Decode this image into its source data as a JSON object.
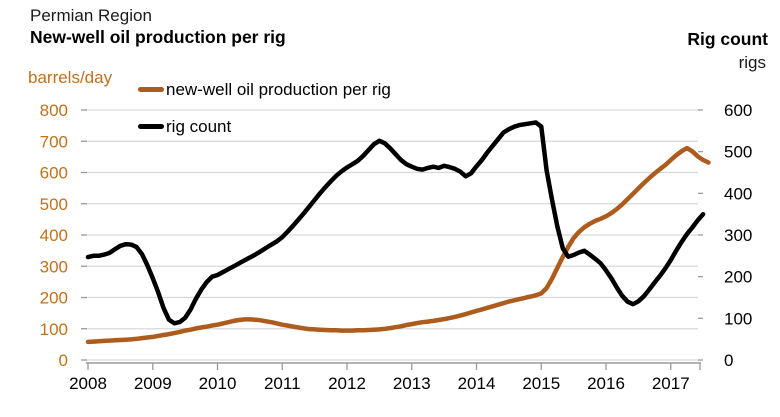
{
  "header": {
    "region": "Permian Region",
    "title": "New-well oil production per rig",
    "right_title": "Rig count",
    "right_unit": "rigs",
    "left_unit": "barrels/day"
  },
  "colors": {
    "production_line": "#ad5c1e",
    "rig_line": "#000000",
    "left_axis_text": "#c1711c",
    "right_axis_text": "#000000",
    "gridline": "#d9d9d9",
    "axis_line": "#9a9a9a"
  },
  "chart_data": {
    "type": "line",
    "title": "Permian Region",
    "subtitle": "New-well oil production per rig",
    "grid": true,
    "legend_position": "top-left-inside",
    "x_axis": {
      "tick_years": [
        "2008",
        "2009",
        "2010",
        "2011",
        "2012",
        "2013",
        "2014",
        "2015",
        "2016",
        "2017"
      ],
      "start": 2008.0,
      "end": 2017.6
    },
    "left_axis": {
      "label": "barrels/day",
      "min": 0,
      "max": 800,
      "step": 100,
      "tick_labels": [
        "0",
        "100",
        "200",
        "300",
        "400",
        "500",
        "600",
        "700",
        "800"
      ]
    },
    "right_axis": {
      "title": "Rig count",
      "label": "rigs",
      "min": 0,
      "max": 600,
      "step": 100,
      "tick_labels": [
        "0",
        "100",
        "200",
        "300",
        "400",
        "500",
        "600"
      ]
    },
    "series": [
      {
        "name": "new-well oil production per rig",
        "axis": "left",
        "color": "#ad5c1e",
        "unit": "barrels/day",
        "start_year": 2008,
        "interval_months": 1,
        "values": [
          58,
          59,
          60,
          61,
          62,
          63,
          64,
          65,
          66,
          68,
          70,
          72,
          74,
          77,
          80,
          83,
          86,
          90,
          94,
          97,
          101,
          104,
          107,
          110,
          113,
          117,
          121,
          125,
          128,
          130,
          130,
          129,
          127,
          124,
          121,
          117,
          113,
          110,
          107,
          104,
          101,
          99,
          98,
          97,
          96,
          95,
          95,
          94,
          94,
          94,
          95,
          95,
          96,
          97,
          98,
          100,
          102,
          105,
          108,
          112,
          115,
          118,
          121,
          123,
          125,
          128,
          131,
          134,
          138,
          142,
          147,
          152,
          157,
          162,
          167,
          172,
          177,
          182,
          187,
          191,
          195,
          199,
          203,
          207,
          213,
          230,
          260,
          295,
          330,
          362,
          390,
          410,
          425,
          436,
          445,
          452,
          460,
          470,
          483,
          498,
          515,
          532,
          549,
          566,
          582,
          597,
          611,
          624,
          640,
          655,
          668,
          678,
          668,
          652,
          640,
          632
        ]
      },
      {
        "name": "rig count",
        "axis": "right",
        "color": "#000000",
        "unit": "rigs",
        "start_year": 2008,
        "interval_months": 1,
        "values": [
          247,
          250,
          250,
          253,
          257,
          266,
          274,
          278,
          277,
          271,
          254,
          227,
          196,
          163,
          125,
          97,
          88,
          91,
          101,
          121,
          147,
          169,
          187,
          200,
          204,
          211,
          218,
          225,
          232,
          239,
          246,
          253,
          261,
          269,
          277,
          285,
          295,
          308,
          322,
          337,
          352,
          368,
          384,
          400,
          415,
          429,
          442,
          453,
          462,
          470,
          478,
          490,
          504,
          518,
          526,
          520,
          508,
          494,
          480,
          470,
          464,
          459,
          457,
          461,
          464,
          461,
          466,
          463,
          459,
          452,
          441,
          448,
          465,
          480,
          498,
          514,
          530,
          546,
          554,
          560,
          564,
          566,
          568,
          570,
          560,
          455,
          385,
          320,
          268,
          248,
          252,
          258,
          262,
          253,
          243,
          232,
          215,
          196,
          174,
          154,
          140,
          134,
          141,
          153,
          169,
          186,
          202,
          220,
          240,
          262,
          283,
          302,
          318,
          335,
          350
        ]
      }
    ]
  }
}
